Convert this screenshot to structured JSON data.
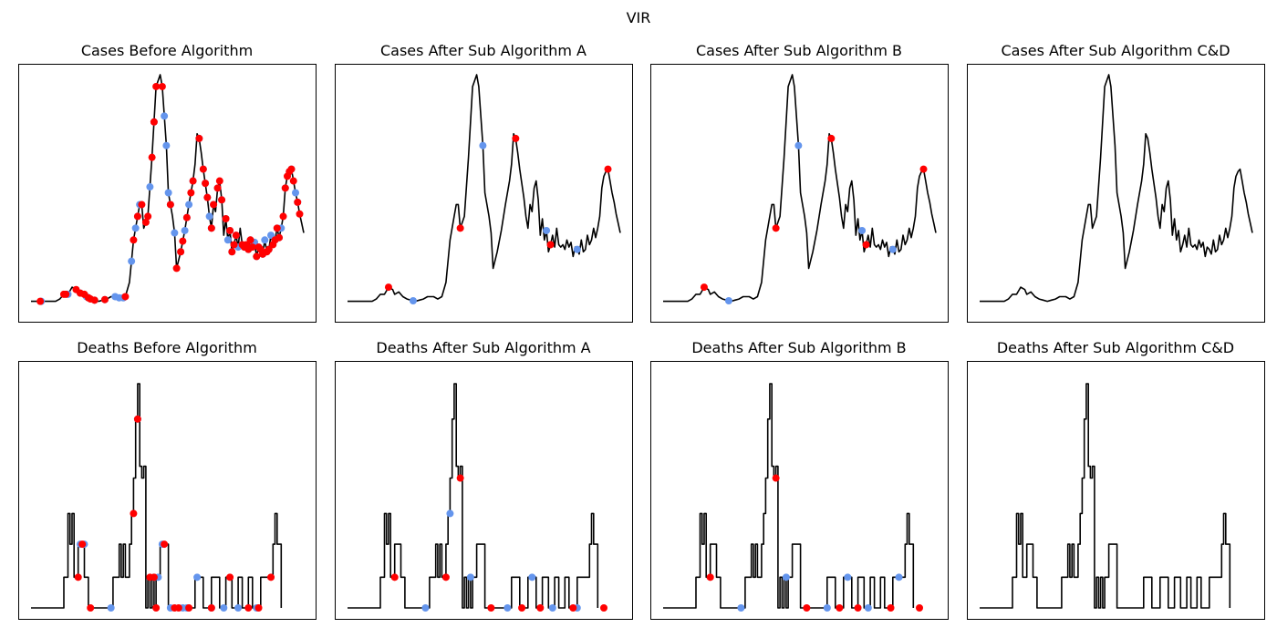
{
  "figure_title": "VIR",
  "colors": {
    "line": "#000000",
    "peak": "#ff0000",
    "trough": "#6495ed"
  },
  "chart_data": [
    {
      "type": "line",
      "name": "cases-before",
      "title": "Cases Before Algorithm",
      "xlabel": "",
      "ylabel": "",
      "ylim": [
        0,
        100
      ],
      "series": "cases",
      "peaks": [
        4.5,
        16,
        17,
        22,
        24,
        26,
        28,
        29,
        31,
        36,
        46,
        50,
        52,
        54,
        56,
        57,
        59,
        60,
        61,
        64,
        68,
        71,
        73,
        74,
        76,
        78,
        79,
        82,
        84,
        85,
        86,
        88,
        89,
        91,
        92,
        93,
        95,
        97,
        98,
        99,
        100,
        103,
        104,
        105,
        106,
        107,
        108,
        110,
        111,
        112,
        113,
        115,
        116,
        118,
        119,
        120,
        121,
        123,
        124,
        125,
        126,
        127,
        128,
        130,
        131
      ],
      "troughs": [
        5,
        18,
        24,
        27,
        28,
        31,
        36,
        41,
        43,
        45,
        49,
        51,
        52,
        53,
        58,
        60,
        65,
        66,
        67,
        68,
        70,
        73,
        75,
        76,
        77,
        79,
        82,
        84,
        85,
        86,
        87,
        88,
        89,
        91,
        93,
        95,
        96,
        97,
        98,
        100,
        101,
        103,
        104,
        106,
        107,
        109,
        110,
        111,
        113,
        114,
        116,
        117,
        119,
        120,
        121,
        122,
        124,
        126,
        127,
        129,
        130
      ]
    },
    {
      "type": "line",
      "name": "cases-after-a",
      "title": "Cases After Sub Algorithm A",
      "xlabel": "",
      "ylabel": "",
      "ylim": [
        0,
        100
      ],
      "series": "cases",
      "peaks": [
        20,
        55,
        82,
        99,
        127
      ],
      "troughs": [
        32,
        66,
        97,
        112
      ]
    },
    {
      "type": "line",
      "name": "cases-after-b",
      "title": "Cases After Sub Algorithm B",
      "xlabel": "",
      "ylabel": "",
      "ylim": [
        0,
        100
      ],
      "series": "cases",
      "peaks": [
        20,
        55,
        82,
        99,
        127
      ],
      "troughs": [
        32,
        66,
        97,
        112
      ]
    },
    {
      "type": "line",
      "name": "cases-after-cd",
      "title": "Cases After Sub Algorithm C&D",
      "xlabel": "",
      "ylabel": "",
      "ylim": [
        0,
        100
      ],
      "series": "cases",
      "peaks": [],
      "troughs": []
    },
    {
      "type": "line",
      "name": "deaths-before",
      "title": "Deaths Before Algorithm",
      "xlabel": "",
      "ylabel": "",
      "ylim": [
        0,
        100
      ],
      "series": "deaths",
      "peaks": [
        23,
        25,
        29,
        50,
        52,
        58,
        60,
        61,
        65,
        70,
        72,
        77,
        88,
        97,
        106,
        111,
        117
      ],
      "troughs": [
        24,
        26,
        39,
        52,
        60,
        62,
        64,
        68,
        74,
        76,
        81,
        88,
        94,
        101,
        110
      ]
    },
    {
      "type": "line",
      "name": "deaths-after-a",
      "title": "Deaths After Sub Algorithm A",
      "xlabel": "",
      "ylabel": "",
      "ylim": [
        0,
        100
      ],
      "series": "deaths",
      "peaks": [
        23,
        48,
        55,
        70,
        85,
        94,
        110,
        125
      ],
      "troughs": [
        38,
        50,
        60,
        78,
        90,
        100,
        112
      ]
    },
    {
      "type": "line",
      "name": "deaths-after-b",
      "title": "Deaths After Sub Algorithm B",
      "xlabel": "",
      "ylabel": "",
      "ylim": [
        0,
        100
      ],
      "series": "deaths",
      "peaks": [
        23,
        55,
        70,
        86,
        95,
        111,
        125
      ],
      "troughs": [
        38,
        60,
        80,
        90,
        100,
        115
      ]
    },
    {
      "type": "line",
      "name": "deaths-after-cd",
      "title": "Deaths After Sub Algorithm C&D",
      "xlabel": "",
      "ylabel": "",
      "ylim": [
        0,
        100
      ],
      "series": "deaths",
      "peaks": [],
      "troughs": []
    }
  ],
  "series": {
    "cases": [
      [
        0,
        4
      ],
      [
        12,
        4
      ],
      [
        14,
        5
      ],
      [
        16,
        7
      ],
      [
        18,
        7
      ],
      [
        20,
        10
      ],
      [
        22,
        9
      ],
      [
        23,
        7
      ],
      [
        25,
        8
      ],
      [
        27,
        6
      ],
      [
        29,
        5
      ],
      [
        31,
        4.5
      ],
      [
        33,
        4
      ],
      [
        35,
        4.5
      ],
      [
        37,
        5
      ],
      [
        39,
        6
      ],
      [
        42,
        6
      ],
      [
        44,
        5
      ],
      [
        46,
        6
      ],
      [
        48,
        12
      ],
      [
        50,
        30
      ],
      [
        52,
        40
      ],
      [
        53,
        45
      ],
      [
        54,
        45
      ],
      [
        55,
        35
      ],
      [
        57,
        40
      ],
      [
        59,
        65
      ],
      [
        61,
        95
      ],
      [
        63,
        100
      ],
      [
        64,
        95
      ],
      [
        66,
        70
      ],
      [
        67,
        50
      ],
      [
        69,
        40
      ],
      [
        70,
        33
      ],
      [
        71,
        18
      ],
      [
        73,
        25
      ],
      [
        75,
        34
      ],
      [
        77,
        45
      ],
      [
        79,
        55
      ],
      [
        80,
        62
      ],
      [
        81,
        75
      ],
      [
        82,
        73
      ],
      [
        83,
        67
      ],
      [
        84,
        60
      ],
      [
        86,
        48
      ],
      [
        87,
        40
      ],
      [
        88,
        35
      ],
      [
        89,
        45
      ],
      [
        90,
        42
      ],
      [
        91,
        52
      ],
      [
        92,
        55
      ],
      [
        93,
        47
      ],
      [
        94,
        32
      ],
      [
        95,
        39
      ],
      [
        96,
        30
      ],
      [
        97,
        34
      ],
      [
        98,
        25
      ],
      [
        99,
        28
      ],
      [
        100,
        32
      ],
      [
        101,
        27
      ],
      [
        102,
        35
      ],
      [
        103,
        28
      ],
      [
        104,
        27
      ],
      [
        105,
        28
      ],
      [
        106,
        26
      ],
      [
        107,
        30
      ],
      [
        108,
        27
      ],
      [
        109,
        29
      ],
      [
        110,
        23
      ],
      [
        111,
        27
      ],
      [
        112,
        26
      ],
      [
        113,
        24
      ],
      [
        114,
        30
      ],
      [
        115,
        25
      ],
      [
        116,
        26
      ],
      [
        117,
        32
      ],
      [
        118,
        28
      ],
      [
        119,
        30
      ],
      [
        120,
        35
      ],
      [
        121,
        31
      ],
      [
        122,
        35
      ],
      [
        123,
        40
      ],
      [
        124,
        52
      ],
      [
        125,
        57
      ],
      [
        126,
        59
      ],
      [
        127,
        60
      ],
      [
        128,
        55
      ],
      [
        129,
        50
      ],
      [
        130,
        46
      ],
      [
        131,
        41
      ],
      [
        132,
        37
      ],
      [
        133,
        33
      ]
    ],
    "deaths": [
      [
        0,
        0
      ],
      [
        16,
        0
      ],
      [
        16,
        13
      ],
      [
        18,
        13
      ],
      [
        18,
        40
      ],
      [
        19,
        40
      ],
      [
        19,
        27
      ],
      [
        20,
        27
      ],
      [
        20,
        40
      ],
      [
        21,
        40
      ],
      [
        21,
        13
      ],
      [
        23,
        13
      ],
      [
        23,
        27
      ],
      [
        26,
        27
      ],
      [
        26,
        13
      ],
      [
        28,
        13
      ],
      [
        28,
        0
      ],
      [
        40,
        0
      ],
      [
        40,
        13
      ],
      [
        43,
        13
      ],
      [
        43,
        27
      ],
      [
        44,
        27
      ],
      [
        44,
        13
      ],
      [
        45,
        13
      ],
      [
        45,
        27
      ],
      [
        46,
        27
      ],
      [
        46,
        13
      ],
      [
        48,
        13
      ],
      [
        48,
        27
      ],
      [
        49,
        27
      ],
      [
        49,
        40
      ],
      [
        50,
        40
      ],
      [
        50,
        55
      ],
      [
        51,
        55
      ],
      [
        51,
        80
      ],
      [
        52,
        80
      ],
      [
        52,
        95
      ],
      [
        53,
        95
      ],
      [
        53,
        60
      ],
      [
        54,
        60
      ],
      [
        54,
        55
      ],
      [
        55,
        55
      ],
      [
        55,
        60
      ],
      [
        56,
        60
      ],
      [
        56,
        0
      ],
      [
        57,
        0
      ],
      [
        57,
        13
      ],
      [
        58,
        13
      ],
      [
        58,
        0
      ],
      [
        59,
        0
      ],
      [
        59,
        13
      ],
      [
        60,
        13
      ],
      [
        60,
        0
      ],
      [
        61,
        0
      ],
      [
        61,
        13
      ],
      [
        63,
        13
      ],
      [
        63,
        27
      ],
      [
        67,
        27
      ],
      [
        67,
        0
      ],
      [
        80,
        0
      ],
      [
        80,
        13
      ],
      [
        84,
        13
      ],
      [
        84,
        0
      ],
      [
        88,
        0
      ],
      [
        88,
        13
      ],
      [
        92,
        13
      ],
      [
        92,
        0
      ],
      [
        95,
        0
      ],
      [
        95,
        13
      ],
      [
        98,
        13
      ],
      [
        98,
        0
      ],
      [
        101,
        0
      ],
      [
        101,
        13
      ],
      [
        103,
        13
      ],
      [
        103,
        0
      ],
      [
        106,
        0
      ],
      [
        106,
        13
      ],
      [
        108,
        13
      ],
      [
        108,
        0
      ],
      [
        112,
        0
      ],
      [
        112,
        13
      ],
      [
        118,
        13
      ],
      [
        118,
        27
      ],
      [
        119,
        27
      ],
      [
        119,
        40
      ],
      [
        120,
        40
      ],
      [
        120,
        27
      ],
      [
        122,
        27
      ],
      [
        122,
        0
      ]
    ]
  }
}
